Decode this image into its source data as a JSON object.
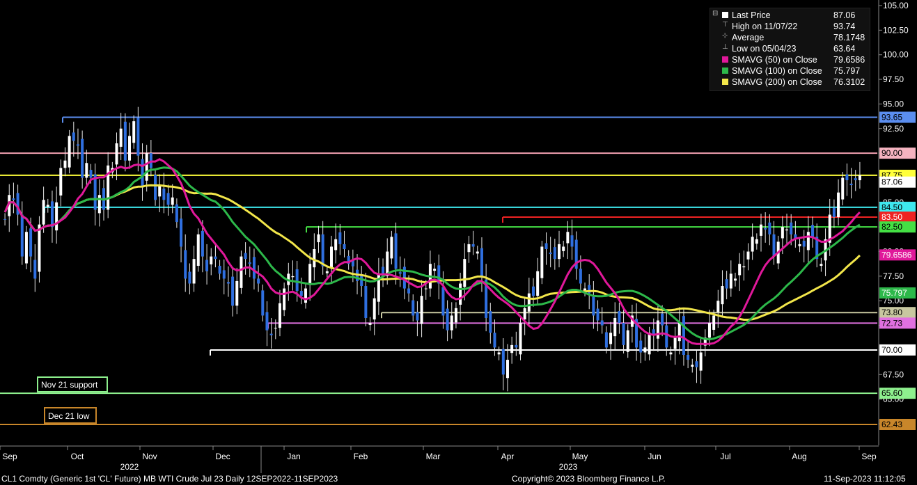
{
  "chart_data": {
    "type": "candlestick",
    "title": "CL1 Comdty (Generic 1st 'CL' Future) MB WTI Crude Jul 23  Daily 12SEP2022-11SEP2023",
    "copyright": "Copyright© 2023 Bloomberg Finance L.P.",
    "timestamp": "11-Sep-2023 11:12:05",
    "ylim": [
      60.5,
      105.2
    ],
    "y_ticks": [
      "105.00",
      "102.50",
      "100.00",
      "97.50",
      "95.00",
      "92.50",
      "90.00",
      "87.50",
      "85.00",
      "82.50",
      "80.00",
      "77.50",
      "75.00",
      "72.50",
      "70.00",
      "67.50",
      "65.00",
      "62.50"
    ],
    "x_months": [
      "Sep",
      "Oct",
      "Nov",
      "Dec",
      "Jan",
      "Feb",
      "Mar",
      "Apr",
      "May",
      "Jun",
      "Jul",
      "Aug",
      "Sep"
    ],
    "x_years": [
      "2022",
      "2023"
    ],
    "legend": [
      {
        "label": "Last Price",
        "value": "87.06",
        "color": "#ffffff"
      },
      {
        "label": "High on 11/07/22",
        "value": "93.74",
        "color": ""
      },
      {
        "label": "Average",
        "value": "78.1748",
        "color": ""
      },
      {
        "label": "Low on 05/04/23",
        "value": "63.64",
        "color": ""
      },
      {
        "label": "SMAVG (50)  on Close",
        "value": "79.6586",
        "color": "#e0189a"
      },
      {
        "label": "SMAVG (100)  on Close",
        "value": "75.797",
        "color": "#2db84a"
      },
      {
        "label": "SMAVG (200)  on Close",
        "value": "76.3102",
        "color": "#f2e64a"
      }
    ],
    "levels": [
      {
        "value": 93.65,
        "label": "93.65",
        "color": "#5b8ef0",
        "box_bg": "#5b8ef0",
        "box_fg": "#000"
      },
      {
        "value": 90.0,
        "label": "90.00",
        "color": "#f0a0b0",
        "box_bg": "#f5b3c0",
        "box_fg": "#000"
      },
      {
        "value": 87.75,
        "label": "87.75",
        "color": "#ffff3a",
        "box_bg": "#ffff3a",
        "box_fg": "#000"
      },
      {
        "value": 84.5,
        "label": "84.50",
        "color": "#3ee8ee",
        "box_bg": "#3ee8ee",
        "box_fg": "#000"
      },
      {
        "value": 83.5,
        "label": "83.50",
        "color": "#ee2222",
        "box_bg": "#ee2222",
        "box_fg": "#fff"
      },
      {
        "value": 82.5,
        "label": "82.50",
        "color": "#44e044",
        "box_bg": "#44e044",
        "box_fg": "#000"
      },
      {
        "value": 73.8,
        "label": "73.80",
        "color": "#c8c8a0",
        "box_bg": "#c8c8a0",
        "box_fg": "#000"
      },
      {
        "value": 72.73,
        "label": "72.73",
        "color": "#e070e0",
        "box_bg": "#e070e0",
        "box_fg": "#000"
      },
      {
        "value": 70.0,
        "label": "70.00",
        "color": "#ffffff",
        "box_bg": "#ffffff",
        "box_fg": "#000"
      },
      {
        "value": 65.6,
        "label": "65.60",
        "color": "#8ef08e",
        "box_bg": "#8ef08e",
        "box_fg": "#000"
      },
      {
        "value": 62.43,
        "label": "62.43",
        "color": "#c8862a",
        "box_bg": "#c8862a",
        "box_fg": "#000"
      }
    ],
    "axis_boxes": [
      {
        "value": 87.06,
        "label": "87.06",
        "box_bg": "#ffffff",
        "box_fg": "#000"
      },
      {
        "value": 79.6586,
        "label": "79.6586",
        "box_bg": "#e0189a",
        "box_fg": "#fff"
      },
      {
        "value": 75.797,
        "label": "75.797",
        "box_bg": "#2db84a",
        "box_fg": "#fff"
      }
    ],
    "annotations": [
      {
        "text": "Nov 21 support",
        "color": "#8ef08e"
      },
      {
        "text": "Dec 21 low",
        "color": "#c8862a"
      }
    ],
    "closes": [
      84,
      86,
      85,
      83,
      80,
      82,
      79,
      78,
      83,
      85,
      84,
      83,
      85,
      88,
      90,
      92,
      91,
      90,
      88,
      89,
      87,
      85,
      86,
      84,
      88,
      89,
      91,
      92,
      90,
      92,
      93,
      89,
      87,
      90,
      88,
      86,
      87,
      85,
      84,
      86,
      83,
      80,
      78,
      77,
      79,
      81,
      80,
      78,
      79,
      80,
      78,
      77,
      76,
      75,
      77,
      79,
      80,
      79,
      77,
      76,
      74,
      72,
      71,
      73,
      75,
      76,
      77,
      78,
      76,
      75,
      77,
      79,
      80,
      81,
      79,
      78,
      80,
      82,
      81,
      80,
      78,
      79,
      77,
      76,
      74,
      73,
      75,
      77,
      78,
      80,
      81,
      79,
      78,
      76,
      75,
      74,
      73,
      75,
      77,
      79,
      78,
      76,
      74,
      72,
      73,
      75,
      77,
      79,
      80,
      81,
      80,
      77,
      74,
      72,
      70,
      69,
      68,
      69,
      70,
      71,
      73,
      74,
      75,
      76,
      78,
      80,
      81,
      80,
      79,
      80,
      81,
      82,
      80,
      79,
      77,
      76,
      75,
      74,
      73,
      72,
      71,
      72,
      73,
      72,
      71,
      72,
      73,
      71,
      70,
      70,
      71,
      72,
      73,
      72,
      71,
      70,
      71,
      72,
      70,
      69,
      68,
      69,
      70,
      71,
      72,
      74,
      75,
      76,
      77,
      78,
      77,
      78,
      79,
      80,
      81,
      82,
      83,
      82,
      81,
      80,
      81,
      82,
      83,
      82,
      81,
      80,
      81,
      82,
      81,
      80,
      79,
      81,
      83,
      84,
      86,
      87,
      88,
      87,
      87,
      87
    ]
  }
}
